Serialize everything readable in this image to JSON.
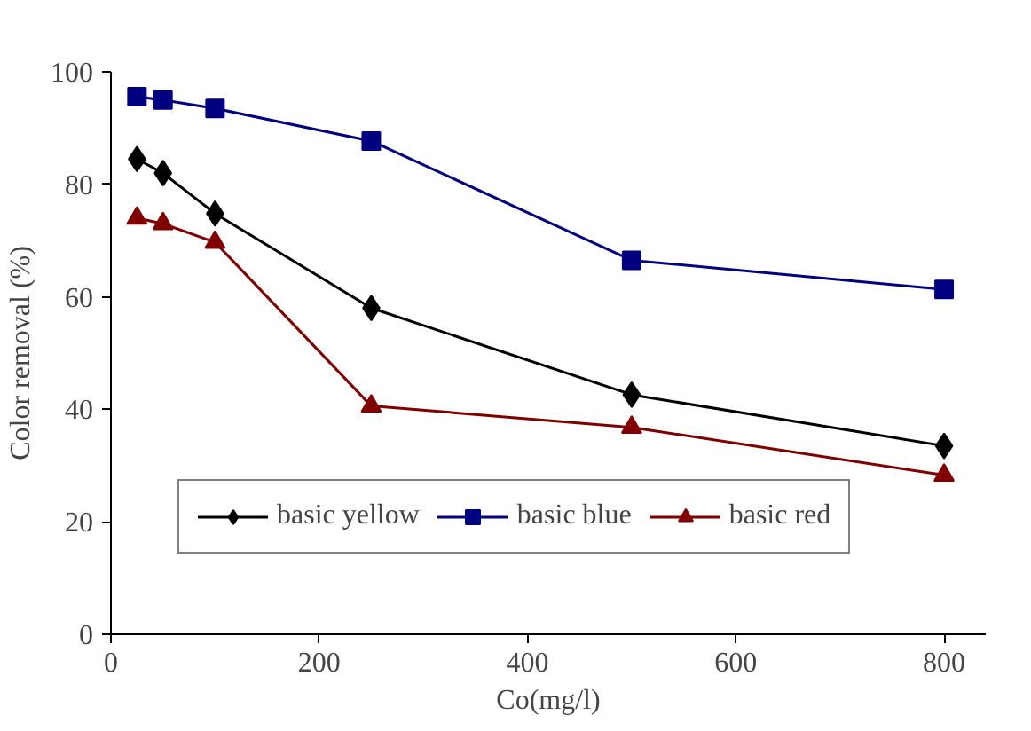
{
  "chart_data": {
    "type": "line",
    "xlabel": "Co(mg/l)",
    "ylabel": "Color removal (%)",
    "x": [
      25,
      50,
      100,
      250,
      500,
      800
    ],
    "series": [
      {
        "name": "basic yellow",
        "color": "#000000",
        "marker": "diamond",
        "values": [
          84.5,
          82,
          74.8,
          58,
          42.6,
          33.5
        ]
      },
      {
        "name": "basic blue",
        "color": "#000080",
        "marker": "square",
        "values": [
          95.6,
          95,
          93.5,
          87.7,
          66.5,
          61.3
        ]
      },
      {
        "name": "basic red",
        "color": "#800000",
        "marker": "triangle",
        "values": [
          74,
          73,
          69.7,
          40.6,
          36.8,
          28.3
        ]
      }
    ],
    "xlim": [
      0,
      840
    ],
    "xticks": [
      0,
      200,
      400,
      600,
      800
    ],
    "ylim": [
      0,
      100
    ],
    "yticks": [
      0,
      20,
      40,
      60,
      80,
      100
    ],
    "grid": false,
    "legend": "bottom",
    "line_style": "solid"
  }
}
